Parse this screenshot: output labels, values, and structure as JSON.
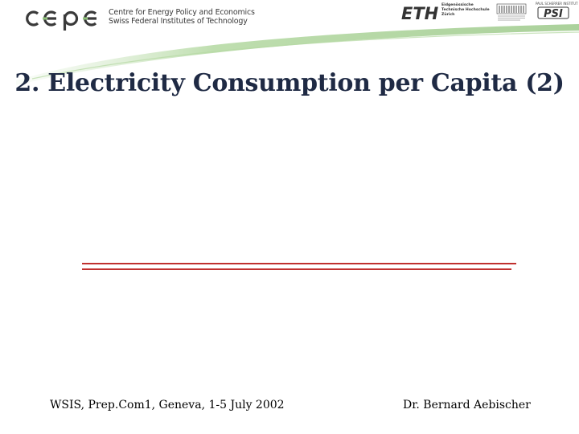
{
  "header": {
    "cepe_logo_text": "cepe",
    "cepe_line1": "Centre for Energy Policy and Economics",
    "cepe_line2": "Swiss Federal Institutes of Technology",
    "eth_logo_text": "ETH",
    "eth_line1": "Eidgenössische",
    "eth_line2": "Technische Hochschule",
    "eth_line3": "Zürich",
    "psi_logo_text": "PSI",
    "psi_top_text": "PAUL SCHERRER INSTITUT",
    "accent_color": "#8fc27a",
    "logo_color": "#333333",
    "icons": [
      "cepe-logo",
      "eth-logo",
      "crpp-logo",
      "psi-logo"
    ]
  },
  "title": "2. Electricity Consumption per Capita (2)",
  "footer": {
    "left": "WSIS, Prep.Com1, Geneva, 1-5 July 2002",
    "right": "Dr. Bernard Aebischer"
  },
  "colors": {
    "title": "#1f2a44",
    "rule": "#c0302e"
  }
}
